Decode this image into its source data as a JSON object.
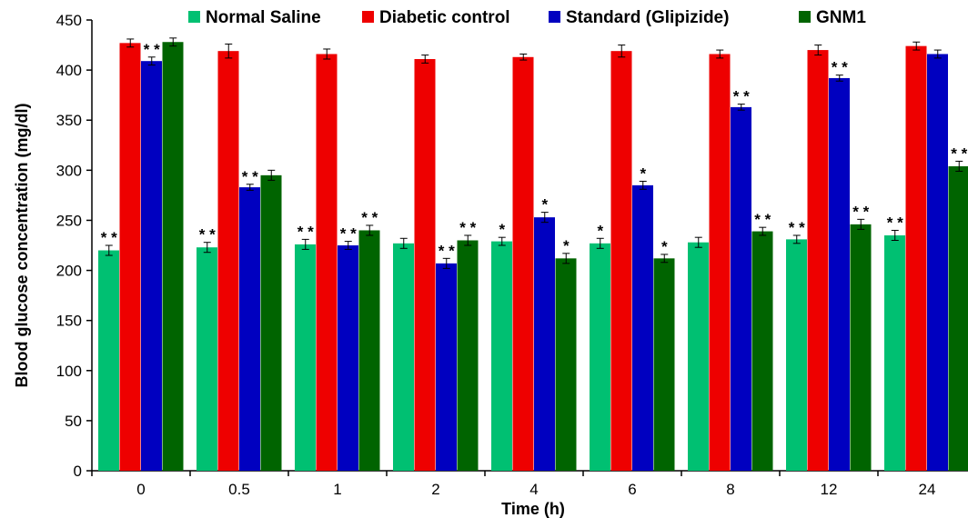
{
  "chart_data": {
    "type": "bar",
    "title": "",
    "xlabel": "Time (h)",
    "ylabel": "Blood glucose concentration (mg/dl)",
    "ylim": [
      0,
      450
    ],
    "yticks": [
      0,
      50,
      100,
      150,
      200,
      250,
      300,
      350,
      400,
      450
    ],
    "categories": [
      "0",
      "0.5",
      "1",
      "2",
      "4",
      "6",
      "8",
      "12",
      "24"
    ],
    "legend_position": "top",
    "grid": false,
    "series": [
      {
        "name": "Normal Saline",
        "color": "#00c072",
        "values": [
          220,
          223,
          226,
          227,
          229,
          227,
          228,
          231,
          235
        ],
        "errors": [
          5,
          5,
          5,
          5,
          4,
          5,
          5,
          4,
          5
        ],
        "significance": [
          "**",
          "**",
          "**",
          "",
          "*",
          "*",
          "",
          "**",
          "**"
        ]
      },
      {
        "name": "Diabetic control",
        "color": "#ee0000",
        "values": [
          427,
          419,
          416,
          411,
          413,
          419,
          416,
          420,
          424
        ],
        "errors": [
          4,
          7,
          5,
          4,
          3,
          6,
          4,
          5,
          4
        ],
        "significance": [
          "",
          "",
          "",
          "",
          "",
          "",
          "",
          "",
          ""
        ]
      },
      {
        "name": "Standard (Glipizide)",
        "color": "#0000c0",
        "values": [
          409,
          283,
          225,
          207,
          253,
          285,
          363,
          392,
          416
        ],
        "errors": [
          4,
          3,
          4,
          5,
          5,
          4,
          3,
          3,
          4
        ],
        "significance": [
          "**",
          "**",
          "**",
          "**",
          "*",
          "*",
          "**",
          "**",
          ""
        ]
      },
      {
        "name": "GNM1",
        "color": "#006400",
        "values": [
          428,
          295,
          240,
          230,
          212,
          212,
          239,
          246,
          304
        ],
        "errors": [
          4,
          5,
          5,
          5,
          5,
          4,
          4,
          5,
          5
        ],
        "significance": [
          "",
          "",
          "**",
          "**",
          "*",
          "*",
          "**",
          "**",
          "**"
        ]
      }
    ]
  }
}
